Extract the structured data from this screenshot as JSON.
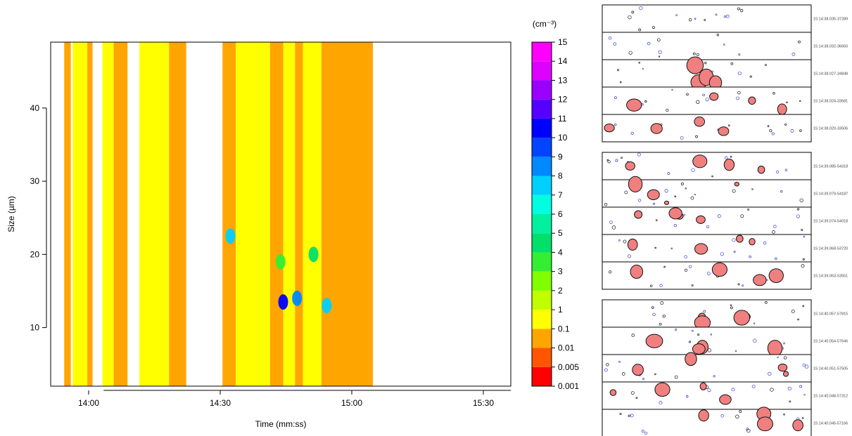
{
  "chart_data": {
    "type": "heatmap",
    "title": "",
    "xlabel": "Time (mm:ss)",
    "ylabel": "Size (µm)",
    "x_ticks": [
      "14:00",
      "14:30",
      "15:00",
      "15:30"
    ],
    "y_ticks": [
      "10",
      "20",
      "30",
      "40"
    ],
    "x_range_minutes": [
      -10,
      77
    ],
    "y_range": [
      2,
      49
    ],
    "colorbar": {
      "unit_label": "(cm⁻³)",
      "levels": [
        "0.001",
        "0.005",
        "0.01",
        "0.1",
        "1",
        "2",
        "3",
        "4",
        "5",
        "6",
        "7",
        "8",
        "9",
        "10",
        "11",
        "12",
        "13",
        "14",
        "15"
      ],
      "colors": [
        "#ff0000",
        "#ff5500",
        "#ffa500",
        "#ffff00",
        "#bfff00",
        "#7fff00",
        "#33ee33",
        "#00e06a",
        "#00f0a0",
        "#00ffe0",
        "#00d0ff",
        "#0088ff",
        "#0044ff",
        "#0000ff",
        "#5500ff",
        "#9900ff",
        "#dd00ff",
        "#ff00ff",
        "#ff0099"
      ]
    },
    "columns": [
      {
        "x_start": 12,
        "x_end": 22,
        "level": "0.01"
      },
      {
        "x_start": 25,
        "x_end": 47,
        "level": "0.1"
      },
      {
        "x_start": 47,
        "x_end": 55,
        "level": "0.01"
      },
      {
        "x_start": 70,
        "x_end": 87,
        "level": "0.1"
      },
      {
        "x_start": 87,
        "x_end": 108,
        "level": "0.01"
      },
      {
        "x_start": 126,
        "x_end": 171,
        "level": "0.1"
      },
      {
        "x_start": 171,
        "x_end": 197,
        "level": "0.01"
      },
      {
        "x_start": 252,
        "x_end": 272,
        "level": "0.01"
      },
      {
        "x_start": 272,
        "x_end": 324,
        "level": "0.1"
      },
      {
        "x_start": 324,
        "x_end": 345,
        "level": "0.01"
      },
      {
        "x_start": 344,
        "x_end": 362,
        "level": "0.1"
      },
      {
        "x_start": 362,
        "x_end": 374,
        "level": "0.01"
      },
      {
        "x_start": 374,
        "x_end": 402,
        "level": "0.1"
      },
      {
        "x_start": 402,
        "x_end": 480,
        "level": "0.01"
      }
    ],
    "highlights": [
      {
        "x": 264,
        "y": 22.5,
        "level": "7"
      },
      {
        "x": 344,
        "y": 13.5,
        "level": "10"
      },
      {
        "x": 365,
        "y": 14.0,
        "level": "8"
      },
      {
        "x": 410,
        "y": 13.0,
        "level": "7"
      },
      {
        "x": 390,
        "y": 20.0,
        "level": "4"
      },
      {
        "x": 340,
        "y": 19.0,
        "level": "3"
      }
    ]
  },
  "image_panels": [
    {
      "timestamps": [
        "15:14:38.035-37289",
        "15:14:38.032-36650",
        "15:14:38.027-34848",
        "15:14:38.024-33681",
        "15:14:38.020-33506"
      ]
    },
    {
      "timestamps": [
        "15:14:39.085-54318",
        "15:14:39.079-54187",
        "15:14:39.074-54018",
        "15:14:39.068-53720",
        "15:14:39.063-53551"
      ]
    },
    {
      "timestamps": [
        "15:14:40.057-57815",
        "15:14:40.054-57646",
        "15:14:40.051-57505",
        "15:14:40.048-57312",
        "15:14:40.045-57166"
      ]
    }
  ],
  "particle_color": "#f08080"
}
